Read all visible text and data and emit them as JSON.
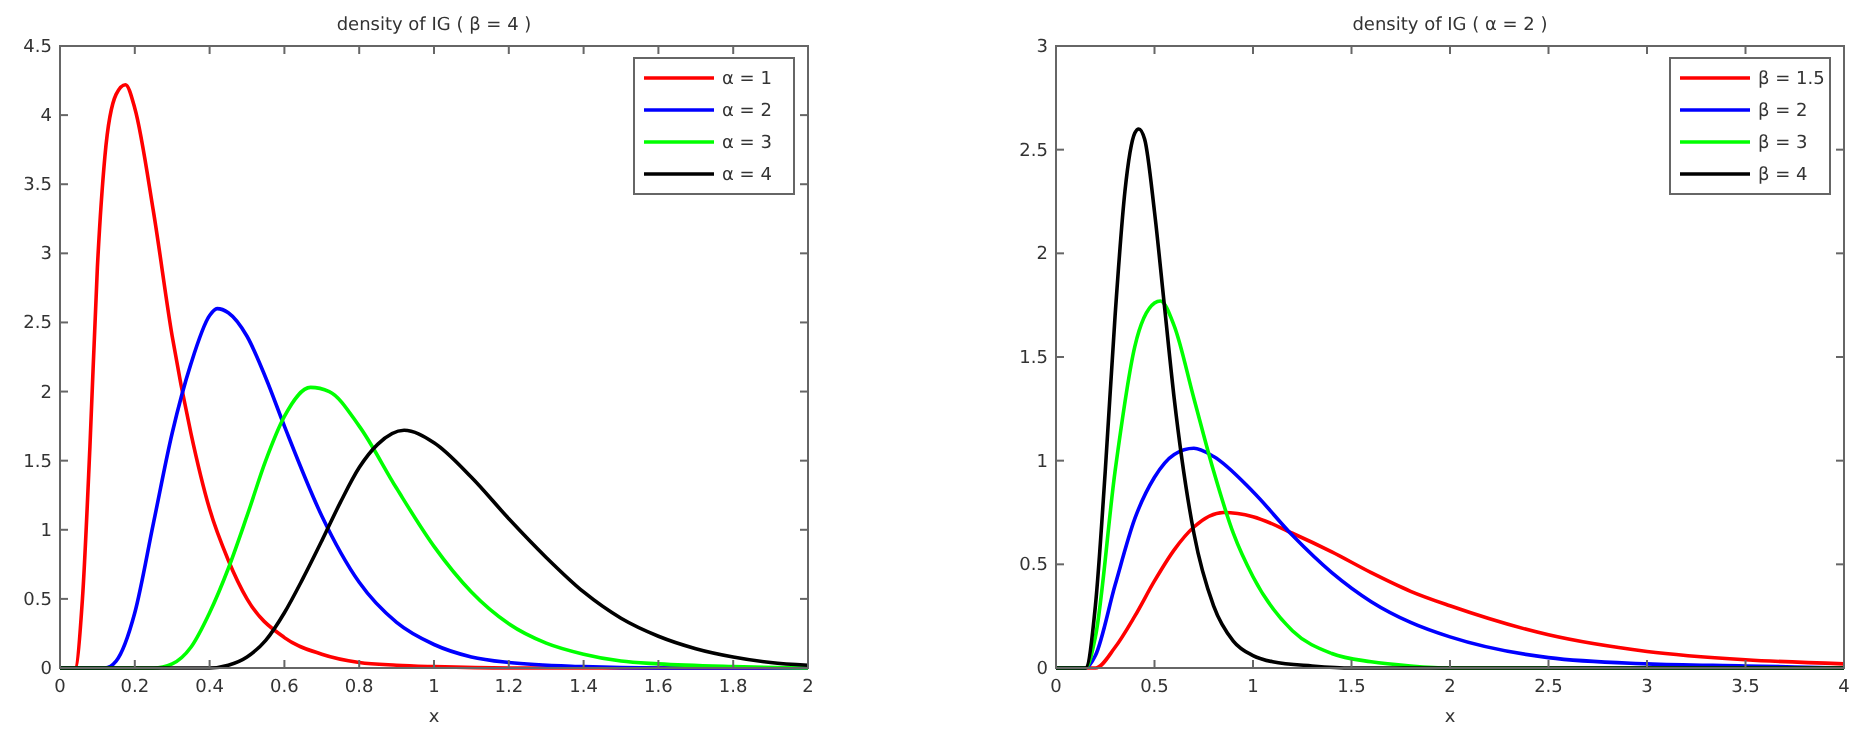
{
  "chart_data": [
    {
      "type": "line",
      "title": "density of IG ( β = 4 )",
      "xlabel": "x",
      "xlim": [
        0,
        2
      ],
      "xticks": [
        0,
        0.2,
        0.4,
        0.6,
        0.8,
        1,
        1.2,
        1.4,
        1.6,
        1.8,
        2
      ],
      "ylim": [
        0,
        4.5
      ],
      "yticks": [
        0,
        0.5,
        1,
        1.5,
        2,
        2.5,
        3,
        3.5,
        4,
        4.5
      ],
      "grid": false,
      "legend": "top right",
      "line_style": "solid",
      "marker": "none",
      "series": [
        {
          "name": "α = 1",
          "color": "#ff0000",
          "x": [
            0,
            0.04,
            0.06,
            0.08,
            0.1,
            0.12,
            0.15,
            0.175,
            0.2,
            0.25,
            0.3,
            0.35,
            0.4,
            0.45,
            0.5,
            0.6,
            0.7,
            0.8,
            0.9,
            1,
            1.2,
            2
          ],
          "values": [
            0,
            0,
            0.5,
            1.6,
            2.9,
            3.7,
            4.15,
            4.22,
            4.05,
            3.3,
            2.4,
            1.7,
            1.15,
            0.78,
            0.5,
            0.22,
            0.1,
            0.04,
            0.02,
            0.01,
            0,
            0
          ]
        },
        {
          "name": "α = 2",
          "color": "#0000ff",
          "x": [
            0,
            0.12,
            0.15,
            0.2,
            0.25,
            0.3,
            0.35,
            0.4,
            0.42,
            0.45,
            0.5,
            0.55,
            0.6,
            0.7,
            0.8,
            0.9,
            1,
            1.1,
            1.2,
            1.4,
            1.6,
            2
          ],
          "values": [
            0,
            0,
            0.05,
            0.4,
            1.05,
            1.7,
            2.2,
            2.55,
            2.6,
            2.57,
            2.4,
            2.1,
            1.75,
            1.1,
            0.62,
            0.33,
            0.17,
            0.08,
            0.04,
            0.01,
            0,
            0
          ]
        },
        {
          "name": "α = 3",
          "color": "#00ff00",
          "x": [
            0,
            0.25,
            0.3,
            0.35,
            0.4,
            0.45,
            0.5,
            0.55,
            0.6,
            0.67,
            0.72,
            0.8,
            0.9,
            1,
            1.1,
            1.2,
            1.3,
            1.4,
            1.5,
            1.6,
            1.8,
            2
          ],
          "values": [
            0,
            0,
            0.03,
            0.15,
            0.4,
            0.72,
            1.1,
            1.5,
            1.82,
            2.03,
            2,
            1.75,
            1.3,
            0.88,
            0.55,
            0.32,
            0.18,
            0.1,
            0.05,
            0.03,
            0.01,
            0
          ]
        },
        {
          "name": "α = 4",
          "color": "#000000",
          "x": [
            0,
            0.4,
            0.45,
            0.5,
            0.55,
            0.6,
            0.65,
            0.7,
            0.75,
            0.8,
            0.85,
            0.92,
            1,
            1.1,
            1.2,
            1.3,
            1.4,
            1.5,
            1.6,
            1.7,
            1.8,
            1.9,
            2
          ],
          "values": [
            0,
            0,
            0.02,
            0.08,
            0.2,
            0.4,
            0.65,
            0.92,
            1.2,
            1.45,
            1.62,
            1.72,
            1.63,
            1.38,
            1.08,
            0.8,
            0.55,
            0.36,
            0.23,
            0.14,
            0.08,
            0.04,
            0.02
          ]
        }
      ]
    },
    {
      "type": "line",
      "title": "density of IG ( α = 2 )",
      "xlabel": "x",
      "xlim": [
        0,
        4
      ],
      "xticks": [
        0,
        0.5,
        1,
        1.5,
        2,
        2.5,
        3,
        3.5,
        4
      ],
      "ylim": [
        0,
        3
      ],
      "yticks": [
        0,
        0.5,
        1,
        1.5,
        2,
        2.5,
        3
      ],
      "grid": false,
      "legend": "top right",
      "line_style": "solid",
      "marker": "none",
      "series": [
        {
          "name": "β = 1.5",
          "color": "#ff0000",
          "x": [
            0,
            0.2,
            0.3,
            0.4,
            0.5,
            0.6,
            0.7,
            0.85,
            1,
            1.2,
            1.4,
            1.6,
            1.8,
            2,
            2.5,
            3,
            3.5,
            4
          ],
          "values": [
            0,
            0,
            0.1,
            0.25,
            0.42,
            0.57,
            0.68,
            0.75,
            0.73,
            0.65,
            0.56,
            0.46,
            0.37,
            0.3,
            0.16,
            0.08,
            0.04,
            0.02
          ]
        },
        {
          "name": "β = 2",
          "color": "#0000ff",
          "x": [
            0,
            0.15,
            0.2,
            0.3,
            0.4,
            0.5,
            0.6,
            0.7,
            0.8,
            1,
            1.2,
            1.4,
            1.6,
            1.8,
            2,
            2.5,
            3,
            3.5,
            4
          ],
          "values": [
            0,
            0,
            0.06,
            0.4,
            0.72,
            0.92,
            1.03,
            1.06,
            1.02,
            0.85,
            0.64,
            0.46,
            0.32,
            0.22,
            0.15,
            0.05,
            0.02,
            0.01,
            0
          ]
        },
        {
          "name": "β = 3",
          "color": "#00ff00",
          "x": [
            0,
            0.15,
            0.2,
            0.3,
            0.4,
            0.5,
            0.53,
            0.6,
            0.7,
            0.8,
            0.9,
            1,
            1.2,
            1.4,
            1.6,
            1.8,
            2,
            4
          ],
          "values": [
            0,
            0,
            0.15,
            0.95,
            1.55,
            1.76,
            1.77,
            1.65,
            1.3,
            0.95,
            0.65,
            0.44,
            0.18,
            0.07,
            0.03,
            0.01,
            0,
            0
          ]
        },
        {
          "name": "β = 4",
          "color": "#000000",
          "x": [
            0,
            0.15,
            0.2,
            0.25,
            0.3,
            0.35,
            0.4,
            0.42,
            0.45,
            0.5,
            0.55,
            0.6,
            0.7,
            0.8,
            0.9,
            1,
            1.1,
            1.3,
            1.5,
            4
          ],
          "values": [
            0,
            0,
            0.3,
            0.95,
            1.7,
            2.3,
            2.58,
            2.6,
            2.55,
            2.2,
            1.75,
            1.3,
            0.65,
            0.3,
            0.13,
            0.06,
            0.03,
            0.01,
            0,
            0
          ]
        }
      ]
    }
  ]
}
